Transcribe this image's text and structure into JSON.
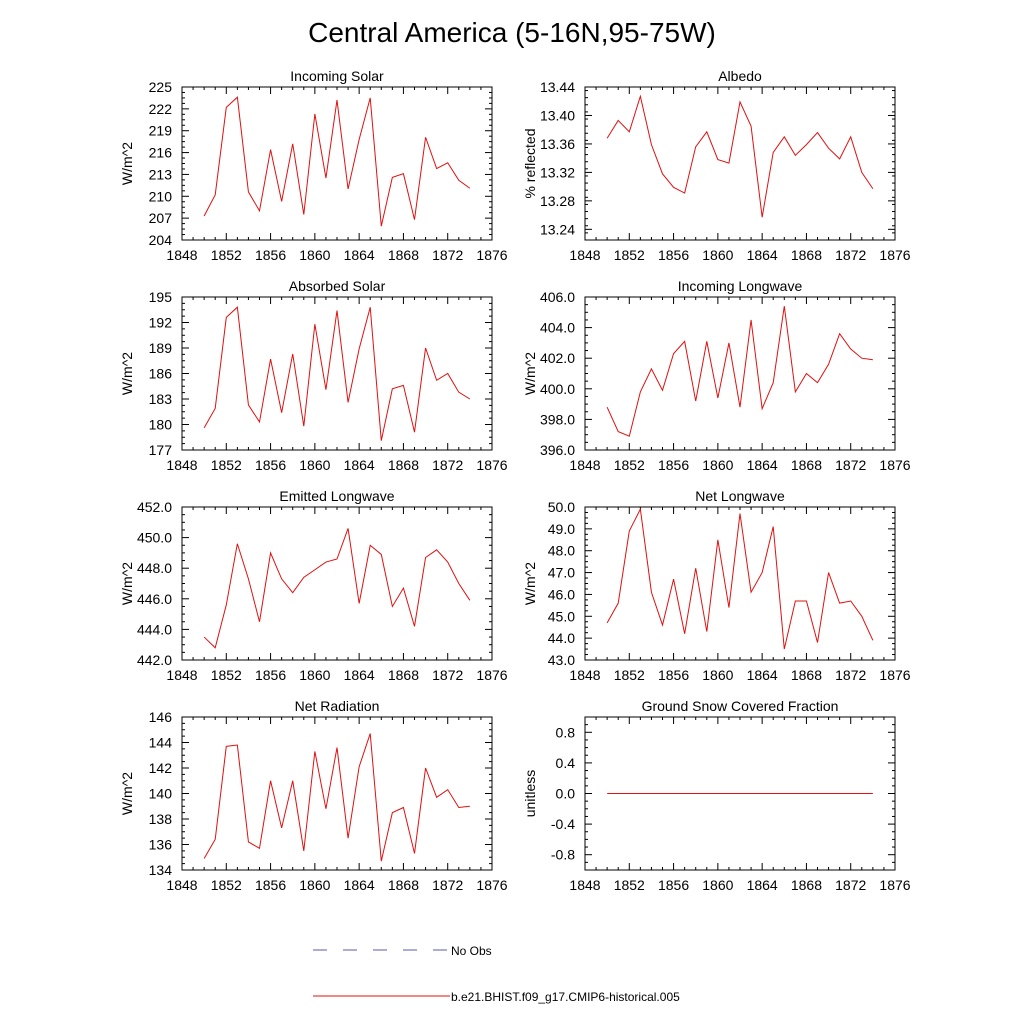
{
  "figure": {
    "title": "Central America (5-16N,95-75W)"
  },
  "legend": {
    "entries": [
      {
        "label": "No Obs",
        "color": "#5a5aa8",
        "style": "dashed"
      },
      {
        "label": "b.e21.BHIST.f09_g17.CMIP6-historical.005",
        "color": "#e01010",
        "style": "solid"
      }
    ]
  },
  "chart_data": [
    {
      "type": "line",
      "title": "Incoming Solar",
      "xlabel": "",
      "ylabel": "W/m^2",
      "xlim": [
        1848,
        1876
      ],
      "ylim": [
        204,
        225
      ],
      "xticks": [
        "1848",
        "1852",
        "1856",
        "1860",
        "1864",
        "1868",
        "1872",
        "1876"
      ],
      "yticks": [
        "204",
        "207",
        "210",
        "213",
        "216",
        "219",
        "222",
        "225"
      ],
      "series": [
        {
          "name": "b.e21.BHIST.f09_g17.CMIP6-historical.005",
          "color": "#e01010",
          "x": [
            1850,
            1851,
            1852,
            1853,
            1854,
            1855,
            1856,
            1857,
            1858,
            1859,
            1860,
            1861,
            1862,
            1863,
            1864,
            1865,
            1866,
            1867,
            1868,
            1869,
            1870,
            1871,
            1872,
            1873,
            1874
          ],
          "y": [
            207.3,
            210.2,
            222.2,
            223.6,
            210.6,
            208.0,
            216.4,
            209.3,
            217.2,
            207.5,
            221.3,
            212.5,
            223.2,
            211.0,
            217.8,
            223.5,
            205.9,
            212.6,
            213.1,
            206.8,
            218.1,
            213.8,
            214.6,
            212.2,
            211.1
          ]
        }
      ]
    },
    {
      "type": "line",
      "title": "Albedo",
      "xlabel": "",
      "ylabel": "% reflected",
      "xlim": [
        1848,
        1876
      ],
      "ylim": [
        13.225,
        13.44
      ],
      "xticks": [
        "1848",
        "1852",
        "1856",
        "1860",
        "1864",
        "1868",
        "1872",
        "1876"
      ],
      "yticks": [
        "13.24",
        "13.28",
        "13.32",
        "13.36",
        "13.40",
        "13.44"
      ],
      "series": [
        {
          "name": "b.e21.BHIST.f09_g17.CMIP6-historical.005",
          "color": "#e01010",
          "x": [
            1850,
            1851,
            1852,
            1853,
            1854,
            1855,
            1856,
            1857,
            1858,
            1859,
            1860,
            1861,
            1862,
            1863,
            1864,
            1865,
            1866,
            1867,
            1868,
            1869,
            1870,
            1871,
            1872,
            1873,
            1874
          ],
          "y": [
            13.368,
            13.393,
            13.377,
            13.427,
            13.359,
            13.318,
            13.299,
            13.291,
            13.356,
            13.377,
            13.338,
            13.333,
            13.419,
            13.385,
            13.257,
            13.348,
            13.37,
            13.344,
            13.359,
            13.376,
            13.354,
            13.339,
            13.37,
            13.32,
            13.297
          ]
        }
      ]
    },
    {
      "type": "line",
      "title": "Absorbed Solar",
      "xlabel": "",
      "ylabel": "W/m^2",
      "xlim": [
        1848,
        1876
      ],
      "ylim": [
        177,
        195
      ],
      "xticks": [
        "1848",
        "1852",
        "1856",
        "1860",
        "1864",
        "1868",
        "1872",
        "1876"
      ],
      "yticks": [
        "177",
        "180",
        "183",
        "186",
        "189",
        "192",
        "195"
      ],
      "series": [
        {
          "name": "b.e21.BHIST.f09_g17.CMIP6-historical.005",
          "color": "#e01010",
          "x": [
            1850,
            1851,
            1852,
            1853,
            1854,
            1855,
            1856,
            1857,
            1858,
            1859,
            1860,
            1861,
            1862,
            1863,
            1864,
            1865,
            1866,
            1867,
            1868,
            1869,
            1870,
            1871,
            1872,
            1873,
            1874
          ],
          "y": [
            179.6,
            181.9,
            192.6,
            193.8,
            182.3,
            180.3,
            187.7,
            181.4,
            188.3,
            179.8,
            191.8,
            184.1,
            193.4,
            182.6,
            188.9,
            193.8,
            178.1,
            184.2,
            184.6,
            179.1,
            189.0,
            185.2,
            186.0,
            183.8,
            183.0
          ]
        }
      ]
    },
    {
      "type": "line",
      "title": "Incoming Longwave",
      "xlabel": "",
      "ylabel": "W/m^2",
      "xlim": [
        1848,
        1876
      ],
      "ylim": [
        396.0,
        406.0
      ],
      "xticks": [
        "1848",
        "1852",
        "1856",
        "1860",
        "1864",
        "1868",
        "1872",
        "1876"
      ],
      "yticks": [
        "396.0",
        "398.0",
        "400.0",
        "402.0",
        "404.0",
        "406.0"
      ],
      "series": [
        {
          "name": "b.e21.BHIST.f09_g17.CMIP6-historical.005",
          "color": "#e01010",
          "x": [
            1850,
            1851,
            1852,
            1853,
            1854,
            1855,
            1856,
            1857,
            1858,
            1859,
            1860,
            1861,
            1862,
            1863,
            1864,
            1865,
            1866,
            1867,
            1868,
            1869,
            1870,
            1871,
            1872,
            1873,
            1874
          ],
          "y": [
            398.8,
            397.2,
            396.9,
            399.8,
            401.3,
            399.9,
            402.3,
            403.1,
            399.2,
            403.1,
            399.4,
            403.0,
            398.8,
            404.5,
            398.7,
            400.4,
            405.4,
            399.8,
            401.0,
            400.4,
            401.6,
            403.6,
            402.6,
            402.0,
            401.9
          ]
        }
      ]
    },
    {
      "type": "line",
      "title": "Emitted Longwave",
      "xlabel": "",
      "ylabel": "W/m^2",
      "xlim": [
        1848,
        1876
      ],
      "ylim": [
        442.0,
        452.0
      ],
      "xticks": [
        "1848",
        "1852",
        "1856",
        "1860",
        "1864",
        "1868",
        "1872",
        "1876"
      ],
      "yticks": [
        "442.0",
        "444.0",
        "446.0",
        "448.0",
        "450.0",
        "452.0"
      ],
      "series": [
        {
          "name": "b.e21.BHIST.f09_g17.CMIP6-historical.005",
          "color": "#e01010",
          "x": [
            1850,
            1851,
            1852,
            1853,
            1854,
            1855,
            1856,
            1857,
            1858,
            1859,
            1860,
            1861,
            1862,
            1863,
            1864,
            1865,
            1866,
            1867,
            1868,
            1869,
            1870,
            1871,
            1872,
            1873,
            1874
          ],
          "y": [
            443.5,
            442.8,
            445.6,
            449.6,
            447.3,
            444.5,
            449.0,
            447.3,
            446.4,
            447.4,
            447.9,
            448.4,
            448.6,
            450.6,
            445.7,
            449.5,
            448.9,
            445.5,
            446.7,
            444.2,
            448.7,
            449.2,
            448.4,
            447.0,
            445.9
          ]
        }
      ]
    },
    {
      "type": "line",
      "title": "Net Longwave",
      "xlabel": "",
      "ylabel": "W/m^2",
      "xlim": [
        1848,
        1876
      ],
      "ylim": [
        43.0,
        50.0
      ],
      "xticks": [
        "1848",
        "1852",
        "1856",
        "1860",
        "1864",
        "1868",
        "1872",
        "1876"
      ],
      "yticks": [
        "43.0",
        "44.0",
        "45.0",
        "46.0",
        "47.0",
        "48.0",
        "49.0",
        "50.0"
      ],
      "series": [
        {
          "name": "b.e21.BHIST.f09_g17.CMIP6-historical.005",
          "color": "#e01010",
          "x": [
            1850,
            1851,
            1852,
            1853,
            1854,
            1855,
            1856,
            1857,
            1858,
            1859,
            1860,
            1861,
            1862,
            1863,
            1864,
            1865,
            1866,
            1867,
            1868,
            1869,
            1870,
            1871,
            1872,
            1873,
            1874
          ],
          "y": [
            44.7,
            45.6,
            48.9,
            49.9,
            46.1,
            44.6,
            46.7,
            44.2,
            47.2,
            44.3,
            48.5,
            45.4,
            49.7,
            46.1,
            47.0,
            49.1,
            43.5,
            45.7,
            45.7,
            43.8,
            47.0,
            45.6,
            45.7,
            45.0,
            43.9
          ]
        }
      ]
    },
    {
      "type": "line",
      "title": "Net Radiation",
      "xlabel": "",
      "ylabel": "W/m^2",
      "xlim": [
        1848,
        1876
      ],
      "ylim": [
        134,
        146
      ],
      "xticks": [
        "1848",
        "1852",
        "1856",
        "1860",
        "1864",
        "1868",
        "1872",
        "1876"
      ],
      "yticks": [
        "134",
        "136",
        "138",
        "140",
        "142",
        "144",
        "146"
      ],
      "series": [
        {
          "name": "b.e21.BHIST.f09_g17.CMIP6-historical.005",
          "color": "#e01010",
          "x": [
            1850,
            1851,
            1852,
            1853,
            1854,
            1855,
            1856,
            1857,
            1858,
            1859,
            1860,
            1861,
            1862,
            1863,
            1864,
            1865,
            1866,
            1867,
            1868,
            1869,
            1870,
            1871,
            1872,
            1873,
            1874
          ],
          "y": [
            134.9,
            136.4,
            143.7,
            143.8,
            136.2,
            135.7,
            141.0,
            137.3,
            141.0,
            135.5,
            143.3,
            138.8,
            143.6,
            136.5,
            142.1,
            144.7,
            134.7,
            138.5,
            138.9,
            135.3,
            142.0,
            139.7,
            140.3,
            138.9,
            139.0
          ]
        }
      ]
    },
    {
      "type": "line",
      "title": "Ground Snow Covered Fraction",
      "xlabel": "",
      "ylabel": "unitless",
      "xlim": [
        1848,
        1876
      ],
      "ylim": [
        -1.0,
        1.0
      ],
      "xticks": [
        "1848",
        "1852",
        "1856",
        "1860",
        "1864",
        "1868",
        "1872",
        "1876"
      ],
      "yticks": [
        "-0.8",
        "-0.4",
        "0.0",
        "0.4",
        "0.8"
      ],
      "series": [
        {
          "name": "b.e21.BHIST.f09_g17.CMIP6-historical.005",
          "color": "#e01010",
          "x": [
            1850,
            1851,
            1852,
            1853,
            1854,
            1855,
            1856,
            1857,
            1858,
            1859,
            1860,
            1861,
            1862,
            1863,
            1864,
            1865,
            1866,
            1867,
            1868,
            1869,
            1870,
            1871,
            1872,
            1873,
            1874
          ],
          "y": [
            0,
            0,
            0,
            0,
            0,
            0,
            0,
            0,
            0,
            0,
            0,
            0,
            0,
            0,
            0,
            0,
            0,
            0,
            0,
            0,
            0,
            0,
            0,
            0,
            0
          ]
        }
      ]
    }
  ]
}
